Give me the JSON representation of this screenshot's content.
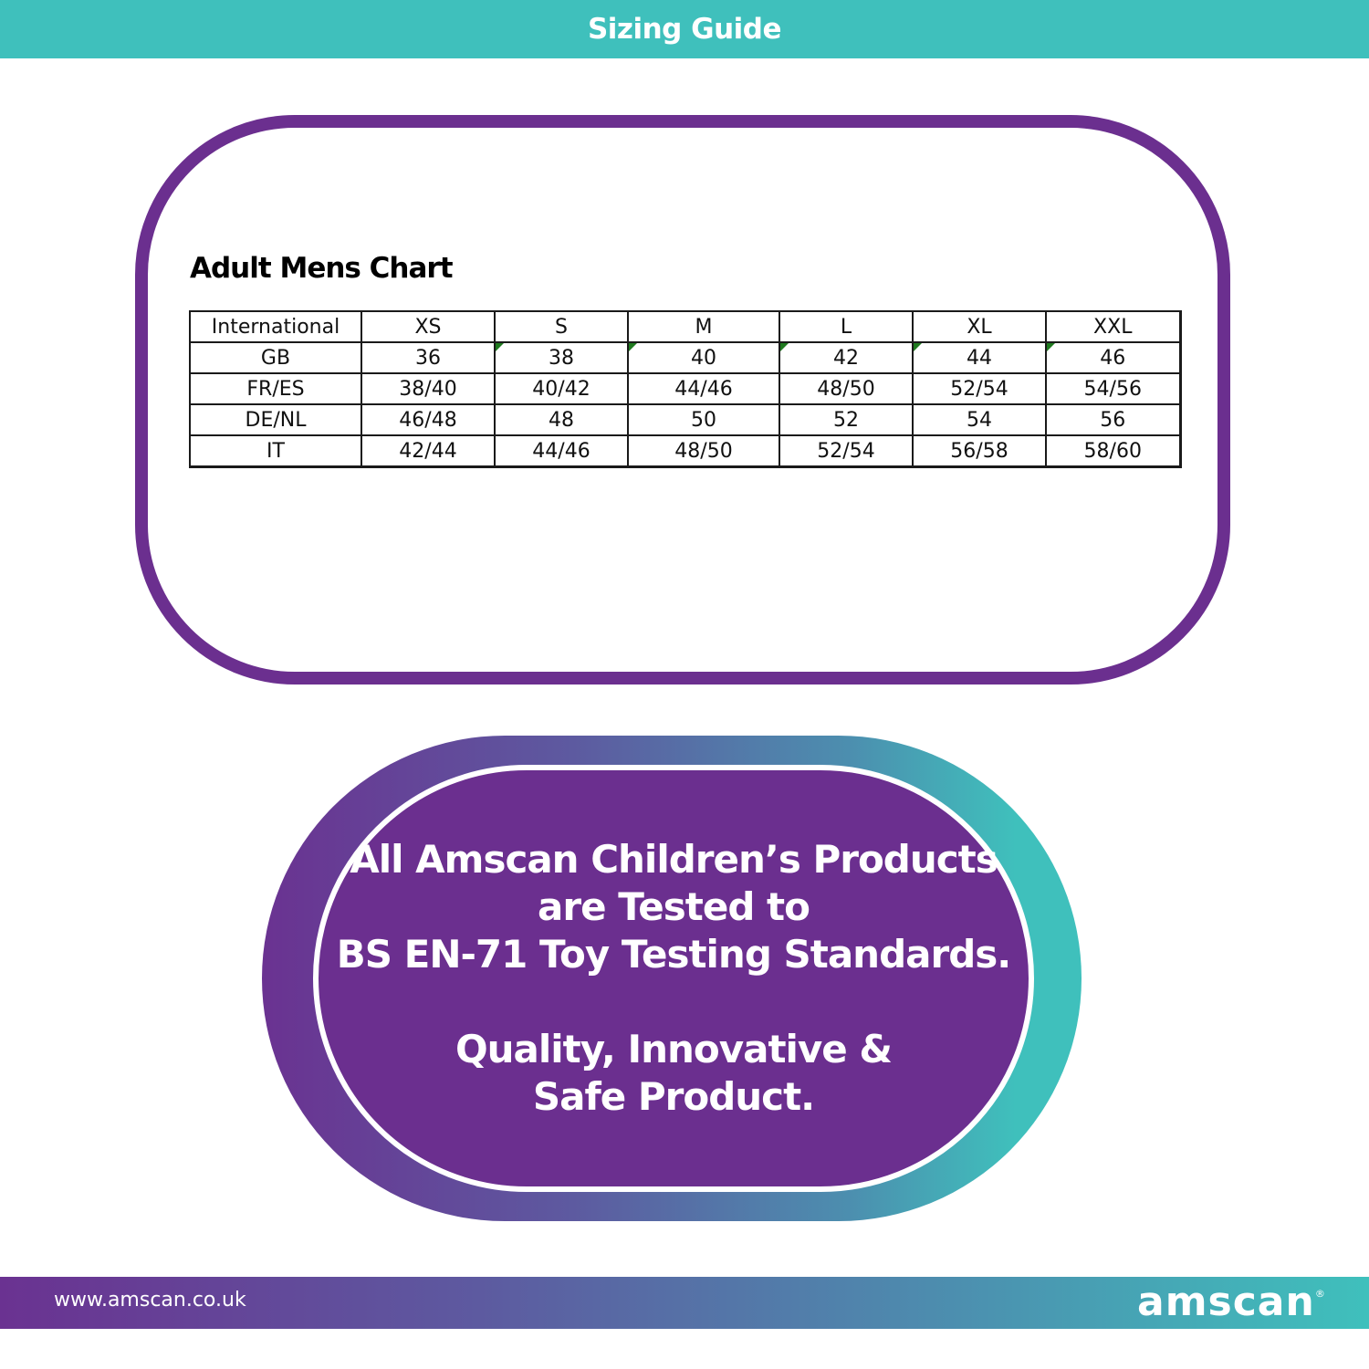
{
  "banner": {
    "title": "Sizing Guide"
  },
  "chart": {
    "title": "Adult Mens Chart",
    "header": [
      "International",
      "XS",
      "S",
      "M",
      "L",
      "XL",
      "XXL"
    ],
    "rows": [
      [
        "GB",
        "36",
        "38",
        "40",
        "42",
        "44",
        "46"
      ],
      [
        "FR/ES",
        "38/40",
        "40/42",
        "44/46",
        "48/50",
        "52/54",
        "54/56"
      ],
      [
        "DE/NL",
        "46/48",
        "48",
        "50",
        "52",
        "54",
        "56"
      ],
      [
        "IT",
        "42/44",
        "44/46",
        "48/50",
        "52/54",
        "56/58",
        "58/60"
      ]
    ]
  },
  "quality": {
    "lines": [
      "All Amscan Children’s Products",
      "are Tested to",
      "BS EN-71 Toy Testing Standards.",
      "Quality, Innovative &",
      "Safe Product."
    ]
  },
  "footer": {
    "url": "www.amscan.co.uk",
    "logo": "amscan",
    "logo_mark": "®"
  },
  "colors": {
    "teal": "#3fc0bc",
    "purple": "#6b2f8f",
    "comment_flag": "#1f7a1f"
  }
}
